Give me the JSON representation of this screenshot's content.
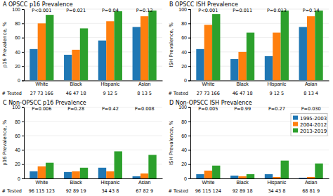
{
  "chart_data": [
    {
      "type": "bar",
      "title": "A OPSCC p16 Prevalence",
      "ylabel": "p16 Prevalence, %",
      "categories": [
        "White",
        "Black",
        "Hispanic",
        "Asian"
      ],
      "series": [
        {
          "values": [
            44,
            36,
            56,
            75
          ]
        },
        {
          "values": [
            80,
            43,
            83,
            90
          ]
        },
        {
          "values": [
            92,
            73,
            97,
            98
          ]
        }
      ],
      "ylim": [
        0,
        100
      ],
      "yticks": [
        0,
        20,
        40,
        60,
        80,
        100
      ],
      "grid": true,
      "annotations": [
        {
          "text": "P<0.001",
          "x": "White",
          "y": 95
        },
        {
          "text": "P=0.021",
          "x": "Black",
          "y": 95
        },
        {
          "text": "P=0.04",
          "x": "Hispanic",
          "y": 95
        },
        {
          "text": "P=0.12",
          "x": "Asian",
          "y": 95
        },
        {
          "text": "# Tested"
        },
        {
          "text": "27 73 166",
          "x": "White"
        },
        {
          "text": "46 47 18",
          "x": "Black"
        },
        {
          "text": "9 12 5",
          "x": "Hispanic"
        },
        {
          "text": "8 13 5",
          "x": "Asian"
        }
      ]
    },
    {
      "type": "bar",
      "title": "B OPSCC ISH Prevalence",
      "ylabel": "ISH Prevalence, %",
      "categories": [
        "White",
        "Black",
        "Hispanic",
        "Asian"
      ],
      "series": [
        {
          "values": [
            44,
            30,
            34,
            75
          ]
        },
        {
          "values": [
            78,
            40,
            67,
            90
          ]
        },
        {
          "values": [
            93,
            67,
            98,
            98
          ]
        }
      ],
      "ylim": [
        0,
        100
      ],
      "yticks": [
        0,
        20,
        40,
        60,
        80,
        100
      ],
      "grid": true,
      "annotations": [
        {
          "text": "P<0.001",
          "x": "White",
          "y": 95
        },
        {
          "text": "P=0.011",
          "x": "Black",
          "y": 95
        },
        {
          "text": "P=0.013",
          "x": "Hispanic",
          "y": 95
        },
        {
          "text": "P=0.14",
          "x": "Asian",
          "y": 95
        },
        {
          "text": "# Tested"
        },
        {
          "text": "27 73 166",
          "x": "White"
        },
        {
          "text": "46 47 18",
          "x": "Black"
        },
        {
          "text": "9 12 5",
          "x": "Hispanic"
        },
        {
          "text": "8 13 4",
          "x": "Asian"
        }
      ]
    },
    {
      "type": "bar",
      "title": "C Non-OPSCC p16 Prevalence",
      "ylabel": "p16 Prevalence, %",
      "categories": [
        "White",
        "Black",
        "Hispanic",
        "Asian"
      ],
      "series": [
        {
          "values": [
            10,
            9,
            15,
            3
          ]
        },
        {
          "values": [
            17,
            10,
            10,
            7
          ]
        },
        {
          "values": [
            22,
            15,
            38,
            33
          ]
        }
      ],
      "ylim": [
        0,
        100
      ],
      "yticks": [
        0,
        20,
        40,
        60,
        80,
        100
      ],
      "grid": true,
      "annotations": [
        {
          "text": "P=0.006",
          "x": "White",
          "y": 95
        },
        {
          "text": "P=0.28",
          "x": "Black",
          "y": 95
        },
        {
          "text": "P=0.42",
          "x": "Hispanic",
          "y": 95
        },
        {
          "text": "P=0.008",
          "x": "Asian",
          "y": 95
        },
        {
          "text": "# Tested"
        },
        {
          "text": "96 115 123",
          "x": "White"
        },
        {
          "text": "92 89 19",
          "x": "Black"
        },
        {
          "text": "34 43 8",
          "x": "Hispanic"
        },
        {
          "text": "67 82 9",
          "x": "Asian"
        }
      ]
    },
    {
      "type": "bar",
      "title": "D Non-OPSCC ISH Prevalence",
      "ylabel": "ISH Prevalence, %",
      "categories": [
        "White",
        "Black",
        "Hispanic",
        "Asian"
      ],
      "series": [
        {
          "name": "1995-2003",
          "values": [
            6,
            4,
            6,
            1
          ]
        },
        {
          "name": "2004-2012",
          "values": [
            11,
            3,
            2,
            2
          ]
        },
        {
          "name": "2013-2019",
          "values": [
            18,
            6,
            25,
            21
          ]
        }
      ],
      "ylim": [
        0,
        100
      ],
      "yticks": [
        0,
        20,
        40,
        60,
        80,
        100
      ],
      "grid": true,
      "legend": "upper right",
      "annotations": [
        {
          "text": "P=0.005",
          "x": "White",
          "y": 95
        },
        {
          "text": "P=0.99",
          "x": "Black",
          "y": 95
        },
        {
          "text": "P=0.27",
          "x": "Hispanic",
          "y": 95
        },
        {
          "text": "P=0.030",
          "x": "Asian",
          "y": 95
        },
        {
          "text": "# Tested"
        },
        {
          "text": "96 115 124",
          "x": "White"
        },
        {
          "text": "92 89 18",
          "x": "Black"
        },
        {
          "text": "34 43 8",
          "x": "Hispanic"
        },
        {
          "text": "68 81 9",
          "x": "Asian"
        }
      ]
    }
  ]
}
